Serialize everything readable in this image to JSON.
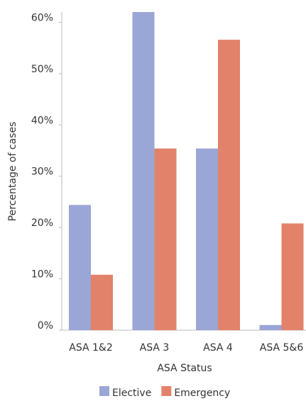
{
  "chart_data": {
    "type": "bar",
    "x_label": "ASA Status",
    "y_label": "Percentage of cases",
    "categories": [
      "ASA 1&2",
      "ASA 3",
      "ASA 4",
      "ASA 5&6"
    ],
    "series": [
      {
        "name": "Elective",
        "color": "#9aa6d6",
        "values": [
          24.4,
          62,
          35.4,
          1.0
        ]
      },
      {
        "name": "Emergency",
        "color": "#e2826a",
        "values": [
          10.8,
          35.4,
          56.6,
          20.8
        ]
      }
    ],
    "ylim": [
      0,
      62
    ],
    "yticks": [
      {
        "value": 0,
        "label": "0%"
      },
      {
        "value": 10,
        "label": "10%"
      },
      {
        "value": 20,
        "label": "20%"
      },
      {
        "value": 30,
        "label": "30%"
      },
      {
        "value": 40,
        "label": "40%"
      },
      {
        "value": 50,
        "label": "50%"
      },
      {
        "value": 60,
        "label": "60%"
      }
    ],
    "grid": false,
    "legend": "bottom"
  }
}
